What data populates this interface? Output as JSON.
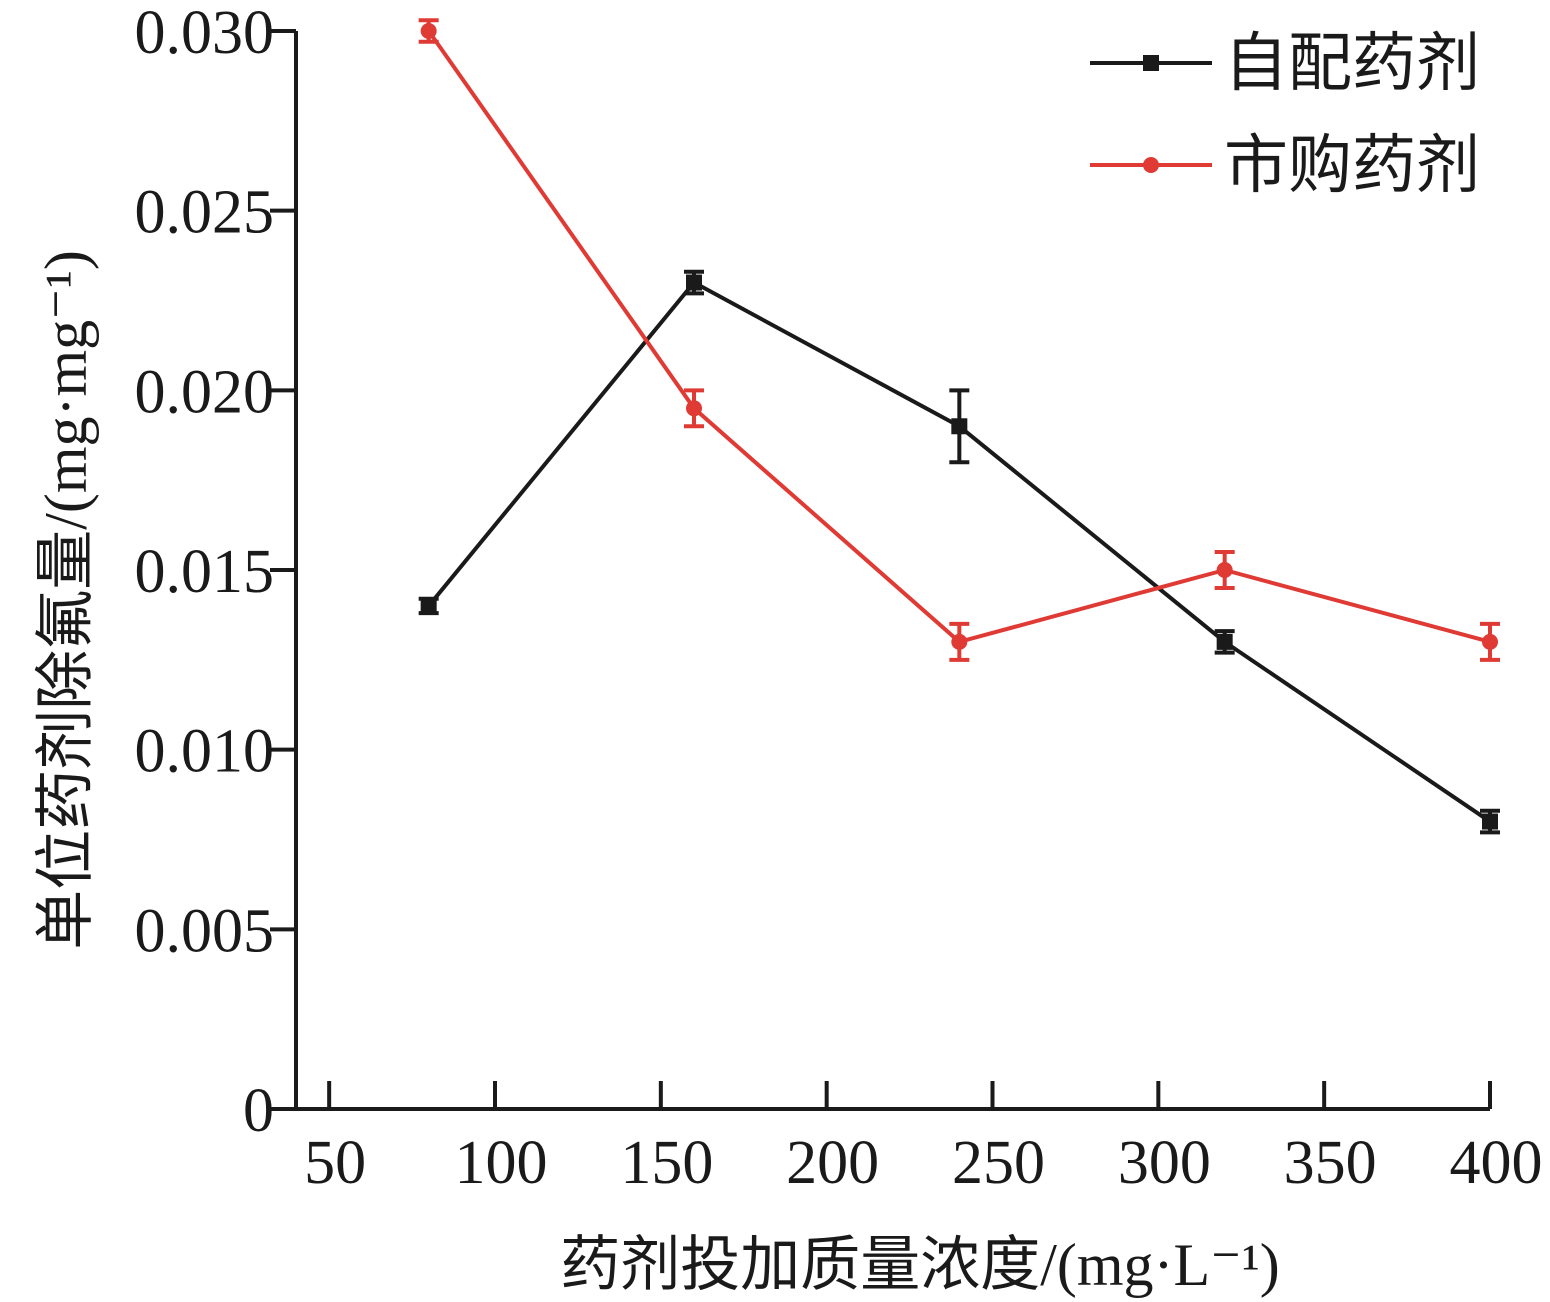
{
  "chart_data": {
    "type": "line",
    "title": "",
    "xlabel": "药剂投加质量浓度/(mg·L⁻¹)",
    "ylabel": "单位药剂除氟量/(mg·mg⁻¹)",
    "xlim": [
      40,
      400
    ],
    "ylim": [
      0,
      0.03
    ],
    "x_ticks": [
      50,
      100,
      150,
      200,
      250,
      300,
      350,
      400
    ],
    "x_tick_labels": [
      "50",
      "100",
      "150",
      "200",
      "250",
      "300",
      "350",
      "400"
    ],
    "y_ticks": [
      0,
      0.005,
      0.01,
      0.015,
      0.02,
      0.025,
      0.03
    ],
    "y_tick_labels": [
      "0",
      "0.005",
      "0.010",
      "0.015",
      "0.020",
      "0.025",
      "0.030"
    ],
    "grid": false,
    "legend_position": "top-right",
    "x": [
      80,
      160,
      240,
      320,
      400
    ],
    "series": [
      {
        "name": "自配药剂",
        "color": "#1a1a1a",
        "marker": "square",
        "values": [
          0.014,
          0.023,
          0.019,
          0.013,
          0.008
        ],
        "errors": [
          0.0002,
          0.0003,
          0.001,
          0.0003,
          0.0003
        ]
      },
      {
        "name": "市购药剂",
        "color": "#e03a35",
        "marker": "circle",
        "values": [
          0.03,
          0.0195,
          0.013,
          0.015,
          0.013
        ],
        "errors": [
          0.0003,
          0.0005,
          0.0005,
          0.0005,
          0.0005
        ]
      }
    ]
  }
}
